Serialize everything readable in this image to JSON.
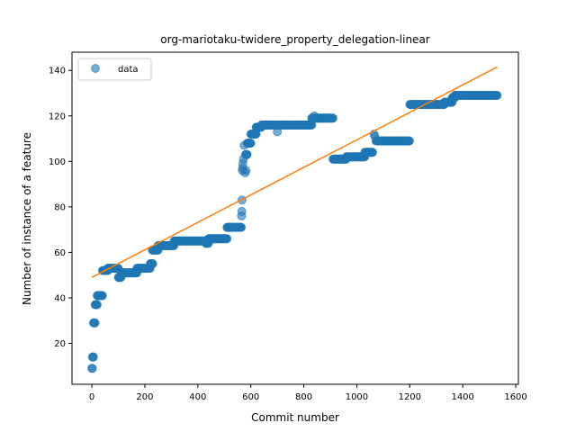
{
  "chart_data": {
    "type": "scatter",
    "title": "org-mariotaku-twidere_property_delegation-linear",
    "xlabel": "Commit number",
    "ylabel": "Number of instance of a feature",
    "xlim": [
      -75,
      1610
    ],
    "ylim": [
      2,
      148
    ],
    "xticks": [
      0,
      200,
      400,
      600,
      800,
      1000,
      1200,
      1400,
      1600
    ],
    "yticks": [
      20,
      40,
      60,
      80,
      100,
      120,
      140
    ],
    "grid": false,
    "legend": {
      "placement": "top-left",
      "entries": [
        "data"
      ]
    },
    "colors": {
      "data": "#1f77b4",
      "fit": "#ff7f0e"
    },
    "series": [
      {
        "name": "data",
        "kind": "scatter",
        "segments": [
          {
            "x0": 0,
            "x1": 2,
            "y": 9
          },
          {
            "x0": 2,
            "x1": 6,
            "y": 14
          },
          {
            "x0": 6,
            "x1": 12,
            "y": 29
          },
          {
            "x0": 12,
            "x1": 20,
            "y": 37
          },
          {
            "x0": 20,
            "x1": 40,
            "y": 41
          },
          {
            "x0": 40,
            "x1": 60,
            "y": 52
          },
          {
            "x0": 60,
            "x1": 100,
            "y": 53
          },
          {
            "x0": 100,
            "x1": 110,
            "y": 49
          },
          {
            "x0": 110,
            "x1": 170,
            "y": 51
          },
          {
            "x0": 170,
            "x1": 220,
            "y": 53
          },
          {
            "x0": 220,
            "x1": 230,
            "y": 55
          },
          {
            "x0": 228,
            "x1": 250,
            "y": 61
          },
          {
            "x0": 250,
            "x1": 310,
            "y": 63
          },
          {
            "x0": 310,
            "x1": 430,
            "y": 65
          },
          {
            "x0": 430,
            "x1": 440,
            "y": 64
          },
          {
            "x0": 440,
            "x1": 510,
            "y": 66
          },
          {
            "x0": 510,
            "x1": 565,
            "y": 71
          },
          {
            "x0": 580,
            "x1": 586,
            "y": 103
          },
          {
            "x0": 586,
            "x1": 600,
            "y": 108
          },
          {
            "x0": 600,
            "x1": 620,
            "y": 112
          },
          {
            "x0": 620,
            "x1": 640,
            "y": 115
          },
          {
            "x0": 640,
            "x1": 830,
            "y": 116
          },
          {
            "x0": 830,
            "x1": 850,
            "y": 119
          },
          {
            "x0": 850,
            "x1": 910,
            "y": 119
          },
          {
            "x0": 910,
            "x1": 960,
            "y": 101
          },
          {
            "x0": 960,
            "x1": 1030,
            "y": 102
          },
          {
            "x0": 1030,
            "x1": 1060,
            "y": 104
          },
          {
            "x0": 1075,
            "x1": 1200,
            "y": 109
          },
          {
            "x0": 1200,
            "x1": 1330,
            "y": 125
          },
          {
            "x0": 1330,
            "x1": 1360,
            "y": 126
          },
          {
            "x0": 1360,
            "x1": 1370,
            "y": 128
          },
          {
            "x0": 1370,
            "x1": 1530,
            "y": 129
          }
        ],
        "points": [
          {
            "x": 565,
            "y": 76
          },
          {
            "x": 566,
            "y": 78
          },
          {
            "x": 567,
            "y": 83
          },
          {
            "x": 568,
            "y": 96
          },
          {
            "x": 569,
            "y": 97
          },
          {
            "x": 570,
            "y": 99
          },
          {
            "x": 572,
            "y": 101
          },
          {
            "x": 575,
            "y": 107
          },
          {
            "x": 578,
            "y": 95
          },
          {
            "x": 582,
            "y": 96
          },
          {
            "x": 585,
            "y": 103
          },
          {
            "x": 700,
            "y": 113
          },
          {
            "x": 840,
            "y": 120
          },
          {
            "x": 1065,
            "y": 112
          },
          {
            "x": 1068,
            "y": 111
          },
          {
            "x": 1072,
            "y": 109
          }
        ]
      },
      {
        "kind": "line",
        "x": [
          0,
          1530
        ],
        "y": [
          49,
          141.5
        ]
      }
    ]
  }
}
